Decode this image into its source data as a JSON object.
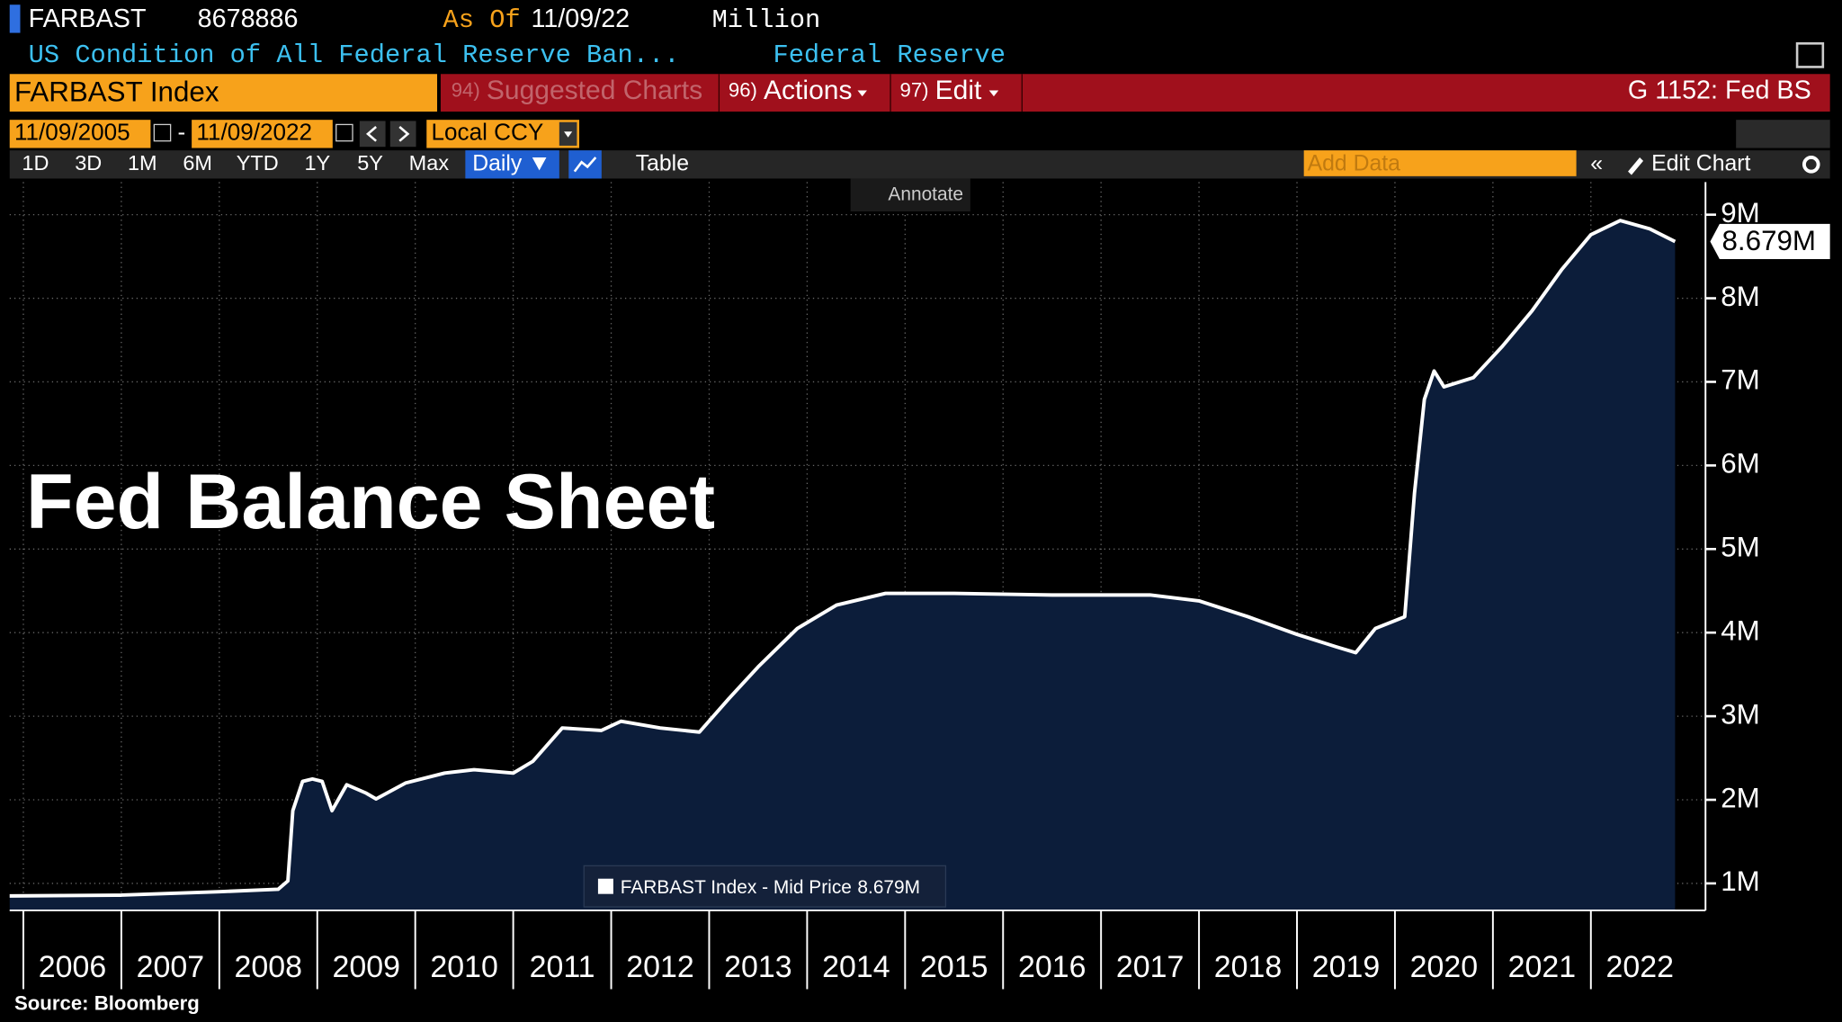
{
  "header": {
    "ticker": "FARBAST",
    "value": "8678886",
    "as_of_label": "As Of",
    "as_of_date": "11/09/22",
    "unit": "Million",
    "description": "US Condition of All Federal Reserve Ban...",
    "source": "Federal Reserve"
  },
  "command_bar": {
    "security": "FARBAST Index",
    "items": [
      {
        "num": "94)",
        "label": "Suggested Charts"
      },
      {
        "num": "96)",
        "label": "Actions"
      },
      {
        "num": "97)",
        "label": "Edit"
      }
    ],
    "page": "G 1152: Fed BS"
  },
  "date_bar": {
    "start": "11/09/2005",
    "end": "11/09/2022",
    "currency": "Local CCY"
  },
  "range_bar": {
    "ranges": [
      "1D",
      "3D",
      "1M",
      "6M",
      "YTD",
      "1Y",
      "5Y",
      "Max"
    ],
    "frequency": "Daily",
    "table": "Table",
    "add_data": "Add Data",
    "edit_chart": "Edit Chart"
  },
  "annotate": "Annotate",
  "chart_data": {
    "type": "area",
    "title": "Fed Balance Sheet",
    "source": "Source: Bloomberg",
    "x": [
      2005.86,
      2007.0,
      2008.0,
      2008.6,
      2008.7,
      2008.75,
      2008.85,
      2008.95,
      2009.05,
      2009.15,
      2009.3,
      2009.5,
      2009.6,
      2009.9,
      2010.3,
      2010.6,
      2011.0,
      2011.2,
      2011.5,
      2011.9,
      2012.1,
      2012.5,
      2012.9,
      2013.2,
      2013.5,
      2013.9,
      2014.3,
      2014.8,
      2015.5,
      2016.5,
      2017.5,
      2018.0,
      2018.5,
      2019.0,
      2019.4,
      2019.6,
      2019.8,
      2020.1,
      2020.2,
      2020.3,
      2020.4,
      2020.5,
      2020.8,
      2021.1,
      2021.4,
      2021.7,
      2022.0,
      2022.3,
      2022.6,
      2022.86
    ],
    "series": [
      {
        "name": "FARBAST Index - Mid Price",
        "color": "#ffffff",
        "fill": "#0c1d3a",
        "values": [
          850000,
          860000,
          900000,
          930000,
          1030000,
          1870000,
          2220000,
          2250000,
          2220000,
          1870000,
          2180000,
          2080000,
          2010000,
          2200000,
          2320000,
          2360000,
          2320000,
          2460000,
          2860000,
          2830000,
          2940000,
          2860000,
          2810000,
          3210000,
          3590000,
          4050000,
          4330000,
          4470000,
          4470000,
          4450000,
          4450000,
          4380000,
          4190000,
          3980000,
          3830000,
          3760000,
          4050000,
          4190000,
          5670000,
          6790000,
          7130000,
          6940000,
          7050000,
          7430000,
          7850000,
          8340000,
          8760000,
          8930000,
          8830000,
          8678886
        ]
      }
    ],
    "last_value_label": {
      "value": 8678886,
      "label": "8.679M"
    },
    "xlim": [
      2005.86,
      2023.17
    ],
    "xticks": [
      2006,
      2007,
      2008,
      2009,
      2010,
      2011,
      2012,
      2013,
      2014,
      2015,
      2016,
      2017,
      2018,
      2019,
      2020,
      2021,
      2022
    ],
    "ylim": [
      677000,
      9390000
    ],
    "yticks": [
      {
        "value": 1000000,
        "label": "1M"
      },
      {
        "value": 2000000,
        "label": "2M"
      },
      {
        "value": 3000000,
        "label": "3M"
      },
      {
        "value": 4000000,
        "label": "4M"
      },
      {
        "value": 5000000,
        "label": "5M"
      },
      {
        "value": 6000000,
        "label": "6M"
      },
      {
        "value": 7000000,
        "label": "7M"
      },
      {
        "value": 8000000,
        "label": "8M"
      },
      {
        "value": 9000000,
        "label": "9M"
      }
    ],
    "grid": true
  }
}
